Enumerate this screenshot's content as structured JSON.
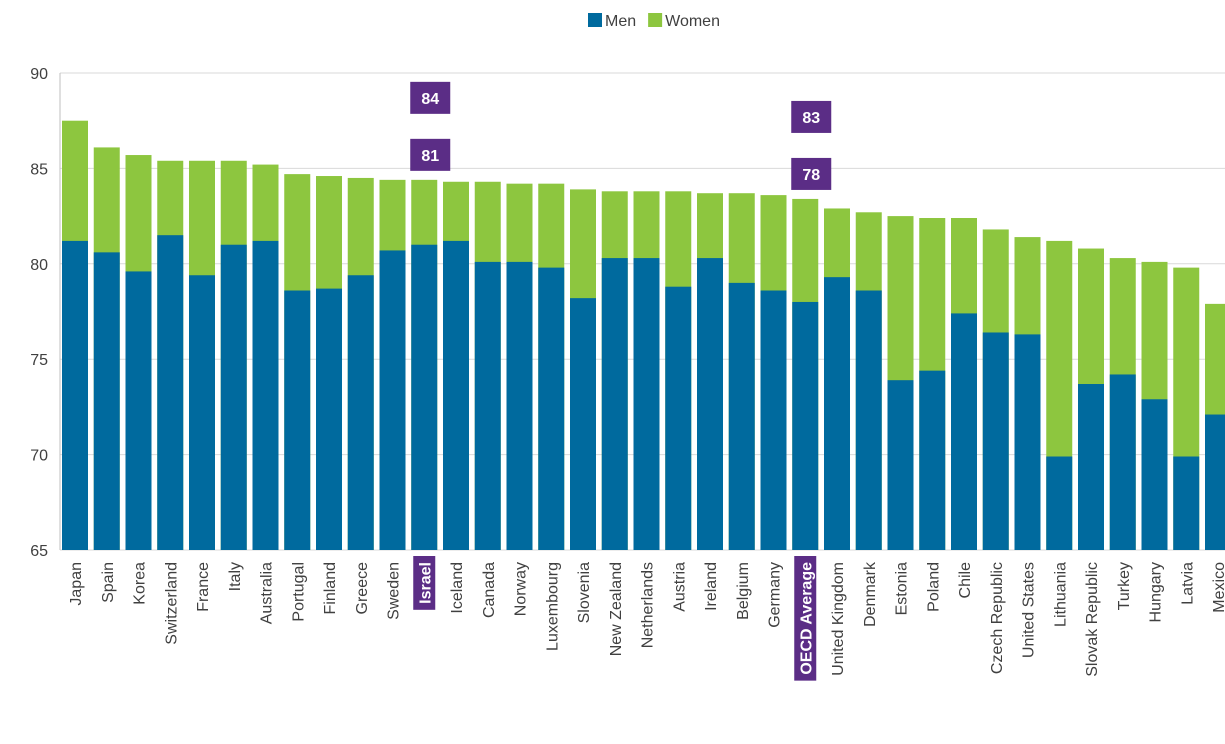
{
  "chart_data": {
    "type": "bar",
    "categories": [
      "Japan",
      "Spain",
      "Korea",
      "Switzerland",
      "France",
      "Italy",
      "Australia",
      "Portugal",
      "Finland",
      "Greece",
      "Sweden",
      "Israel",
      "Iceland",
      "Canada",
      "Norway",
      "Luxembourg",
      "Slovenia",
      "New Zealand",
      "Netherlands",
      "Austria",
      "Ireland",
      "Belgium",
      "Germany",
      "OECD Average",
      "United Kingdom",
      "Denmark",
      "Estonia",
      "Poland",
      "Chile",
      "Czech Republic",
      "United States",
      "Lithuania",
      "Slovak Republic",
      "Turkey",
      "Hungary",
      "Latvia",
      "Mexico"
    ],
    "series": [
      {
        "name": "Men",
        "color": "#006a9e",
        "values": [
          81.2,
          80.6,
          79.6,
          81.5,
          79.4,
          81.0,
          81.2,
          78.6,
          78.7,
          79.4,
          80.7,
          81.0,
          81.2,
          80.1,
          80.1,
          79.8,
          78.2,
          80.3,
          80.3,
          78.8,
          80.3,
          79.0,
          78.6,
          78.0,
          79.3,
          78.6,
          73.9,
          74.4,
          77.4,
          76.4,
          76.3,
          69.9,
          73.7,
          74.2,
          72.9,
          69.9,
          72.1
        ],
        "value_labels": [
          null,
          null,
          null,
          null,
          null,
          null,
          null,
          null,
          null,
          null,
          null,
          "81",
          null,
          null,
          null,
          null,
          null,
          null,
          null,
          null,
          null,
          null,
          null,
          "78",
          null,
          null,
          null,
          null,
          null,
          null,
          null,
          null,
          null,
          null,
          null,
          null,
          null
        ]
      },
      {
        "name": "Women",
        "color": "#8dc63f",
        "values": [
          87.5,
          86.1,
          85.7,
          85.4,
          85.4,
          85.4,
          85.2,
          84.7,
          84.6,
          84.5,
          84.4,
          84.4,
          84.3,
          84.3,
          84.2,
          84.2,
          83.9,
          83.8,
          83.8,
          83.8,
          83.7,
          83.7,
          83.6,
          83.4,
          82.9,
          82.7,
          82.5,
          82.4,
          82.4,
          81.8,
          81.4,
          81.2,
          80.8,
          80.3,
          80.1,
          79.8,
          77.9
        ],
        "value_labels": [
          null,
          null,
          null,
          null,
          null,
          null,
          null,
          null,
          null,
          null,
          null,
          "84",
          null,
          null,
          null,
          null,
          null,
          null,
          null,
          null,
          null,
          null,
          null,
          "83",
          null,
          null,
          null,
          null,
          null,
          null,
          null,
          null,
          null,
          null,
          null,
          null,
          null
        ]
      }
    ],
    "ylim": [
      65,
      90
    ],
    "yticks": [
      65,
      70,
      75,
      80,
      85,
      90
    ],
    "grid": true,
    "legend": "top",
    "highlight_color": "#5b2d86"
  }
}
